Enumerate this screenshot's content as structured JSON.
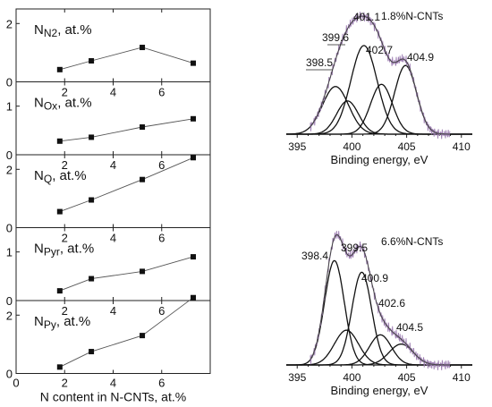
{
  "chart_data": [
    {
      "type": "line",
      "panel": "stacked-left",
      "xlabel": "N content in N-CNTs, at.%",
      "xlim": [
        0,
        8
      ],
      "x_ticks": [
        "0",
        "2",
        "4",
        "6"
      ],
      "x": [
        1.8,
        3.1,
        5.2,
        7.3
      ],
      "panels": [
        {
          "label_main": "N",
          "label_sub": "N2",
          "label_rest": ", at.%",
          "ylim": [
            0,
            2.5
          ],
          "y_ticks": [
            "0",
            "2"
          ],
          "values": [
            0.42,
            0.72,
            1.18,
            0.64
          ]
        },
        {
          "label_main": "N",
          "label_sub": "Ox",
          "label_rest": ", at.%",
          "ylim": [
            0,
            1.5
          ],
          "y_ticks": [
            "0",
            "1"
          ],
          "values": [
            0.28,
            0.36,
            0.57,
            0.74
          ]
        },
        {
          "label_main": "N",
          "label_sub": "Q",
          "label_rest": ", at.%",
          "ylim": [
            0,
            2.5
          ],
          "y_ticks": [
            "0",
            "2"
          ],
          "values": [
            0.55,
            0.95,
            1.65,
            2.4
          ]
        },
        {
          "label_main": "N",
          "label_sub": "Pyr",
          "label_rest": ", at.%",
          "ylim": [
            0,
            1.5
          ],
          "y_ticks": [
            "0",
            "1"
          ],
          "values": [
            0.2,
            0.45,
            0.6,
            0.9
          ]
        },
        {
          "label_main": "N",
          "label_sub": "Py",
          "label_rest": ", at.%",
          "ylim": [
            0,
            2.5
          ],
          "y_ticks": [
            "0",
            "2"
          ],
          "values": [
            0.22,
            0.75,
            1.3,
            2.6
          ]
        }
      ]
    },
    {
      "type": "line",
      "panel": "xps-top",
      "title": "1.8%N-CNTs",
      "xlabel": "Binding energy, eV",
      "xlim": [
        394,
        411
      ],
      "x_ticks": [
        "395",
        "400",
        "405",
        "410"
      ],
      "ylim": [
        0,
        1.05
      ],
      "peaks": [
        {
          "center": 398.5,
          "height": 0.43,
          "width": 1.2,
          "label": "398.5"
        },
        {
          "center": 399.6,
          "height": 0.3,
          "width": 1.0,
          "label": "399.6"
        },
        {
          "center": 401.1,
          "height": 0.8,
          "width": 1.2,
          "label": "401.1"
        },
        {
          "center": 402.7,
          "height": 0.45,
          "width": 1.0,
          "label": "402.7"
        },
        {
          "center": 404.9,
          "height": 0.62,
          "width": 1.0,
          "label": "404.9"
        }
      ]
    },
    {
      "type": "line",
      "panel": "xps-bottom",
      "title": "6.6%N-CNTs",
      "xlabel": "Binding energy, eV",
      "xlim": [
        394,
        411
      ],
      "x_ticks": [
        "395",
        "400",
        "405",
        "410"
      ],
      "ylim": [
        0,
        1.05
      ],
      "peaks": [
        {
          "center": 398.4,
          "height": 0.9,
          "width": 0.9,
          "label": "398.4"
        },
        {
          "center": 399.5,
          "height": 0.3,
          "width": 1.1,
          "label": "399.5"
        },
        {
          "center": 400.9,
          "height": 0.8,
          "width": 0.9,
          "label": "400.9"
        },
        {
          "center": 402.6,
          "height": 0.26,
          "width": 1.0,
          "label": "402.6"
        },
        {
          "center": 404.5,
          "height": 0.18,
          "width": 1.1,
          "label": "404.5"
        }
      ]
    }
  ]
}
